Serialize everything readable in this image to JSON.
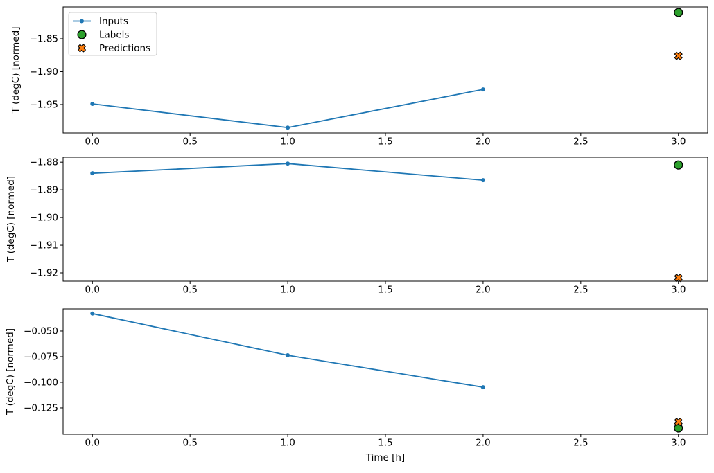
{
  "figure": {
    "background": "#ffffff",
    "axis_color": "#000000",
    "text_color": "#000000"
  },
  "legend": {
    "position": "upper left",
    "border_color": "#cccccc",
    "background": "#ffffff",
    "items": [
      {
        "label": "Inputs",
        "marker": "line-dot",
        "color": "#1f77b4",
        "edge": "#1f77b4"
      },
      {
        "label": "Labels",
        "marker": "circle",
        "color": "#2ca02c",
        "edge": "#000000"
      },
      {
        "label": "Predictions",
        "marker": "x",
        "color": "#ff7f0e",
        "edge": "#000000"
      }
    ]
  },
  "chart_data": [
    {
      "type": "line",
      "title": "",
      "xlabel": "",
      "ylabel": "T (degC) [normed]",
      "xlim": [
        -0.15,
        3.15
      ],
      "ylim": [
        -1.9932,
        -1.8016
      ],
      "grid": false,
      "legend": true,
      "xticks": {
        "values": [
          0.0,
          0.5,
          1.0,
          1.5,
          2.0,
          2.5,
          3.0
        ],
        "labels": [
          "0.0",
          "0.5",
          "1.0",
          "1.5",
          "2.0",
          "2.5",
          "3.0"
        ]
      },
      "yticks": {
        "values": [
          -1.85,
          -1.9,
          -1.95
        ],
        "labels": [
          "−1.85",
          "−1.90",
          "−1.95"
        ]
      },
      "series": [
        {
          "name": "Inputs",
          "kind": "line",
          "marker": "dot",
          "color": "#1f77b4",
          "edge": "#1f77b4",
          "x": [
            0,
            1,
            2
          ],
          "y": [
            -1.949,
            -1.985,
            -1.927
          ]
        },
        {
          "name": "Labels",
          "kind": "scatter",
          "marker": "circle",
          "color": "#2ca02c",
          "edge": "#000000",
          "x": [
            3
          ],
          "y": [
            -1.81
          ]
        },
        {
          "name": "Predictions",
          "kind": "scatter",
          "marker": "x",
          "color": "#ff7f0e",
          "edge": "#000000",
          "x": [
            3
          ],
          "y": [
            -1.876
          ]
        }
      ]
    },
    {
      "type": "line",
      "title": "",
      "xlabel": "",
      "ylabel": "T (degC) [normed]",
      "xlim": [
        -0.15,
        3.15
      ],
      "ylim": [
        -1.923,
        -1.8782
      ],
      "grid": false,
      "legend": false,
      "xticks": {
        "values": [
          0.0,
          0.5,
          1.0,
          1.5,
          2.0,
          2.5,
          3.0
        ],
        "labels": [
          "0.0",
          "0.5",
          "1.0",
          "1.5",
          "2.0",
          "2.5",
          "3.0"
        ]
      },
      "yticks": {
        "values": [
          -1.88,
          -1.89,
          -1.9,
          -1.91,
          -1.92
        ],
        "labels": [
          "−1.88",
          "−1.89",
          "−1.90",
          "−1.91",
          "−1.92"
        ]
      },
      "series": [
        {
          "name": "Inputs",
          "kind": "line",
          "marker": "dot",
          "color": "#1f77b4",
          "edge": "#1f77b4",
          "x": [
            0,
            1,
            2
          ],
          "y": [
            -1.884,
            -1.8805,
            -1.8865
          ]
        },
        {
          "name": "Labels",
          "kind": "scatter",
          "marker": "circle",
          "color": "#2ca02c",
          "edge": "#000000",
          "x": [
            3
          ],
          "y": [
            -1.881
          ]
        },
        {
          "name": "Predictions",
          "kind": "scatter",
          "marker": "x",
          "color": "#ff7f0e",
          "edge": "#000000",
          "x": [
            3
          ],
          "y": [
            -1.9218
          ]
        }
      ]
    },
    {
      "type": "line",
      "title": "",
      "xlabel": "Time [h]",
      "ylabel": "T (degC) [normed]",
      "xlim": [
        -0.15,
        3.15
      ],
      "ylim": [
        -0.1507,
        -0.0284
      ],
      "grid": false,
      "legend": false,
      "xticks": {
        "values": [
          0.0,
          0.5,
          1.0,
          1.5,
          2.0,
          2.5,
          3.0
        ],
        "labels": [
          "0.0",
          "0.5",
          "1.0",
          "1.5",
          "2.0",
          "2.5",
          "3.0"
        ]
      },
      "yticks": {
        "values": [
          -0.05,
          -0.075,
          -0.1,
          -0.125
        ],
        "labels": [
          "−0.050",
          "−0.075",
          "−0.100",
          "−0.125"
        ]
      },
      "series": [
        {
          "name": "Inputs",
          "kind": "line",
          "marker": "dot",
          "color": "#1f77b4",
          "edge": "#1f77b4",
          "x": [
            0,
            1,
            2
          ],
          "y": [
            -0.033,
            -0.0737,
            -0.1048
          ]
        },
        {
          "name": "Labels",
          "kind": "scatter",
          "marker": "circle",
          "color": "#2ca02c",
          "edge": "#000000",
          "x": [
            3
          ],
          "y": [
            -0.1447
          ]
        },
        {
          "name": "Predictions",
          "kind": "scatter",
          "marker": "x",
          "color": "#ff7f0e",
          "edge": "#000000",
          "x": [
            3
          ],
          "y": [
            -0.1386
          ]
        }
      ]
    }
  ]
}
